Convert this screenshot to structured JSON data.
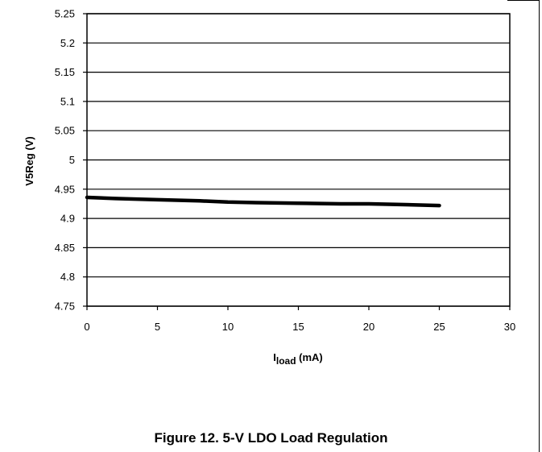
{
  "caption": "Figure 12. 5-V LDO Load Regulation",
  "chart_data": {
    "type": "line",
    "ylabel": "V5Reg (V)",
    "xlabel": {
      "main": "I",
      "sub": "load",
      "unit": " (mA)"
    },
    "xlim": [
      0,
      30
    ],
    "ylim": [
      4.75,
      5.25
    ],
    "xticks": [
      0,
      5,
      10,
      15,
      20,
      25,
      30
    ],
    "yticks": [
      "4.75",
      "4.8",
      "4.85",
      "4.9",
      "4.95",
      "5",
      "5.05",
      "5.1",
      "5.15",
      "5.2",
      "5.25"
    ],
    "grid": "horizontal",
    "line_color": "#000000",
    "series": [
      {
        "x": [
          0,
          2,
          5,
          8,
          10,
          12,
          15,
          18,
          20,
          22,
          25
        ],
        "y": [
          4.936,
          4.934,
          4.932,
          4.93,
          4.928,
          4.927,
          4.926,
          4.925,
          4.925,
          4.924,
          4.922
        ]
      }
    ]
  }
}
